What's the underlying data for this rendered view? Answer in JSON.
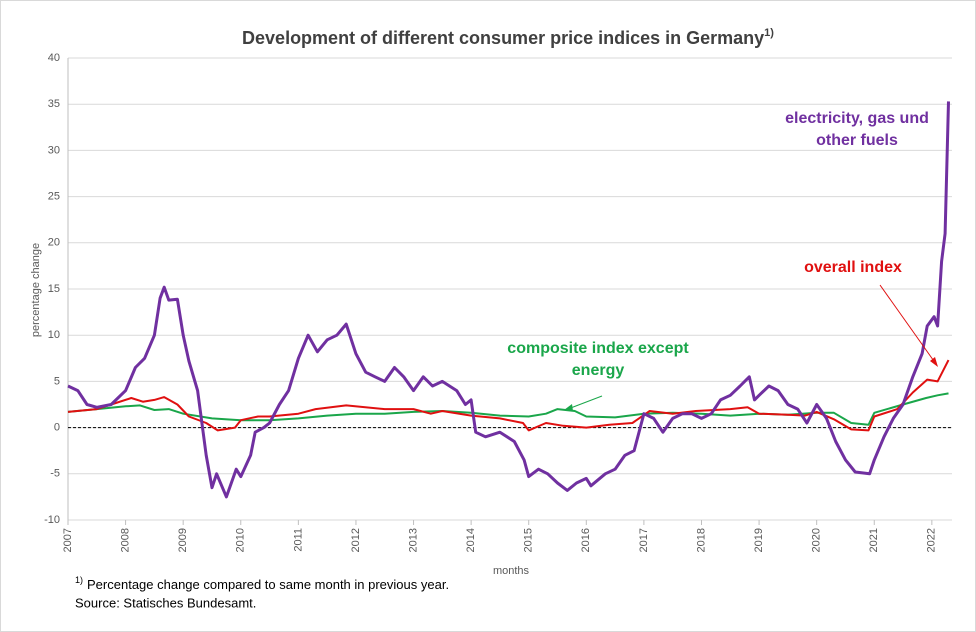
{
  "chart_data": {
    "type": "line",
    "title": "Development  of different consumer price indices in Germany",
    "title_marker": "1)",
    "y_label": "percentage change",
    "x_label": "months",
    "xlim": [
      2007,
      2022.35
    ],
    "xticks": [
      2007,
      2008,
      2009,
      2010,
      2011,
      2012,
      2013,
      2014,
      2015,
      2016,
      2017,
      2018,
      2019,
      2020,
      2021,
      2022
    ],
    "ylim": [
      -10,
      40
    ],
    "yticks": [
      -10,
      -5,
      0,
      5,
      10,
      15,
      20,
      25,
      30,
      35,
      40
    ],
    "grid": true,
    "hline": 0,
    "series": [
      {
        "name": "composite index except energy",
        "color": "#1aa64a",
        "x": [
          2007,
          2007.5,
          2008,
          2008.25,
          2008.5,
          2008.75,
          2009,
          2009.5,
          2010,
          2010.5,
          2011,
          2011.5,
          2012,
          2012.5,
          2013,
          2013.5,
          2014,
          2014.5,
          2015,
          2015.3,
          2015.5,
          2015.8,
          2016,
          2016.5,
          2017,
          2017.5,
          2018,
          2018.5,
          2019,
          2019.5,
          2020,
          2020.3,
          2020.6,
          2020.9,
          2021,
          2021.5,
          2021.9,
          2022.1,
          2022.29
        ],
        "values": [
          1.7,
          2.0,
          2.3,
          2.4,
          1.9,
          2.0,
          1.5,
          1.0,
          0.8,
          0.8,
          1.0,
          1.3,
          1.5,
          1.5,
          1.7,
          1.8,
          1.6,
          1.3,
          1.2,
          1.5,
          2.0,
          1.8,
          1.2,
          1.1,
          1.5,
          1.6,
          1.5,
          1.3,
          1.5,
          1.4,
          1.6,
          1.6,
          0.5,
          0.3,
          1.6,
          2.5,
          3.2,
          3.5,
          3.7
        ]
      },
      {
        "name": "overall index",
        "color": "#e01010",
        "x": [
          2007,
          2007.5,
          2007.75,
          2008.1,
          2008.3,
          2008.5,
          2008.67,
          2008.9,
          2009.1,
          2009.4,
          2009.6,
          2009.9,
          2010,
          2010.3,
          2010.5,
          2011,
          2011.3,
          2011.83,
          2012.5,
          2013,
          2013.3,
          2013.5,
          2014,
          2014.5,
          2014.9,
          2015,
          2015.3,
          2015.6,
          2016,
          2016.4,
          2016.8,
          2017.1,
          2017.5,
          2017.9,
          2018.5,
          2018.8,
          2019,
          2019.5,
          2019.8,
          2020,
          2020.3,
          2020.6,
          2020.9,
          2021,
          2021.4,
          2021.67,
          2021.92,
          2022.1,
          2022.29
        ],
        "values": [
          1.7,
          2.0,
          2.5,
          3.2,
          2.8,
          3.0,
          3.3,
          2.5,
          1.2,
          0.5,
          -0.3,
          0,
          0.8,
          1.2,
          1.2,
          1.5,
          2.0,
          2.4,
          2.0,
          2.0,
          1.5,
          1.8,
          1.3,
          1.0,
          0.5,
          -0.3,
          0.5,
          0.2,
          0,
          0.3,
          0.5,
          1.8,
          1.5,
          1.8,
          2.0,
          2.2,
          1.5,
          1.4,
          1.3,
          1.7,
          0.9,
          -0.2,
          -0.3,
          1.2,
          2.0,
          3.8,
          5.2,
          5.0,
          7.3
        ]
      },
      {
        "name": "electricity, gas und other fuels",
        "color": "#7030a0",
        "x": [
          2007,
          2007.17,
          2007.33,
          2007.5,
          2007.75,
          2008,
          2008.17,
          2008.33,
          2008.5,
          2008.6,
          2008.67,
          2008.75,
          2008.9,
          2009,
          2009.1,
          2009.25,
          2009.4,
          2009.5,
          2009.58,
          2009.75,
          2009.92,
          2010,
          2010.17,
          2010.25,
          2010.4,
          2010.5,
          2010.67,
          2010.83,
          2011,
          2011.17,
          2011.33,
          2011.5,
          2011.67,
          2011.83,
          2012,
          2012.17,
          2012.33,
          2012.5,
          2012.67,
          2012.83,
          2013,
          2013.17,
          2013.33,
          2013.5,
          2013.75,
          2013.9,
          2014,
          2014.08,
          2014.25,
          2014.5,
          2014.75,
          2014.92,
          2015,
          2015.17,
          2015.33,
          2015.5,
          2015.67,
          2015.83,
          2016,
          2016.08,
          2016.33,
          2016.5,
          2016.67,
          2016.83,
          2017,
          2017.17,
          2017.33,
          2017.5,
          2017.67,
          2017.83,
          2018,
          2018.17,
          2018.33,
          2018.5,
          2018.67,
          2018.83,
          2018.92,
          2019,
          2019.17,
          2019.33,
          2019.5,
          2019.67,
          2019.83,
          2020,
          2020.17,
          2020.33,
          2020.5,
          2020.67,
          2020.92,
          2021,
          2021.17,
          2021.33,
          2021.5,
          2021.67,
          2021.83,
          2021.92,
          2022.04,
          2022.1,
          2022.17,
          2022.23,
          2022.29
        ],
        "values": [
          4.5,
          4.0,
          2.5,
          2.2,
          2.5,
          4.0,
          6.5,
          7.5,
          10,
          14,
          15.2,
          13.8,
          13.9,
          10,
          7.2,
          4,
          -3,
          -6.5,
          -5,
          -7.5,
          -4.5,
          -5.3,
          -3,
          -0.5,
          0,
          0.5,
          2.5,
          4,
          7.5,
          10,
          8.2,
          9.5,
          10,
          11.2,
          8,
          6,
          5.5,
          5,
          6.5,
          5.5,
          4,
          5.5,
          4.5,
          5,
          4,
          2.5,
          3,
          -0.5,
          -1,
          -0.5,
          -1.5,
          -3.5,
          -5.3,
          -4.5,
          -5,
          -6,
          -6.8,
          -6,
          -5.5,
          -6.3,
          -5,
          -4.5,
          -3,
          -2.5,
          1.5,
          1,
          -0.5,
          1,
          1.5,
          1.5,
          1,
          1.5,
          3,
          3.5,
          4.5,
          5.5,
          3,
          3.5,
          4.5,
          4,
          2.5,
          2,
          0.5,
          2.5,
          1,
          -1.5,
          -3.5,
          -4.8,
          -5,
          -3.5,
          -1,
          1,
          2.5,
          5.5,
          8,
          11,
          12,
          11,
          18,
          21,
          35.3
        ]
      }
    ],
    "annotations": [
      {
        "series": 2,
        "lines": [
          "electricity, gas und",
          "other fuels"
        ]
      },
      {
        "series": 1,
        "lines": [
          "overall index"
        ]
      },
      {
        "series": 0,
        "lines": [
          "composite index except",
          "energy"
        ]
      }
    ],
    "footnote_marker": "1)",
    "footnote": "Percentage change compared to same month in previous year.",
    "source": "Source: Statisches Bundesamt."
  }
}
